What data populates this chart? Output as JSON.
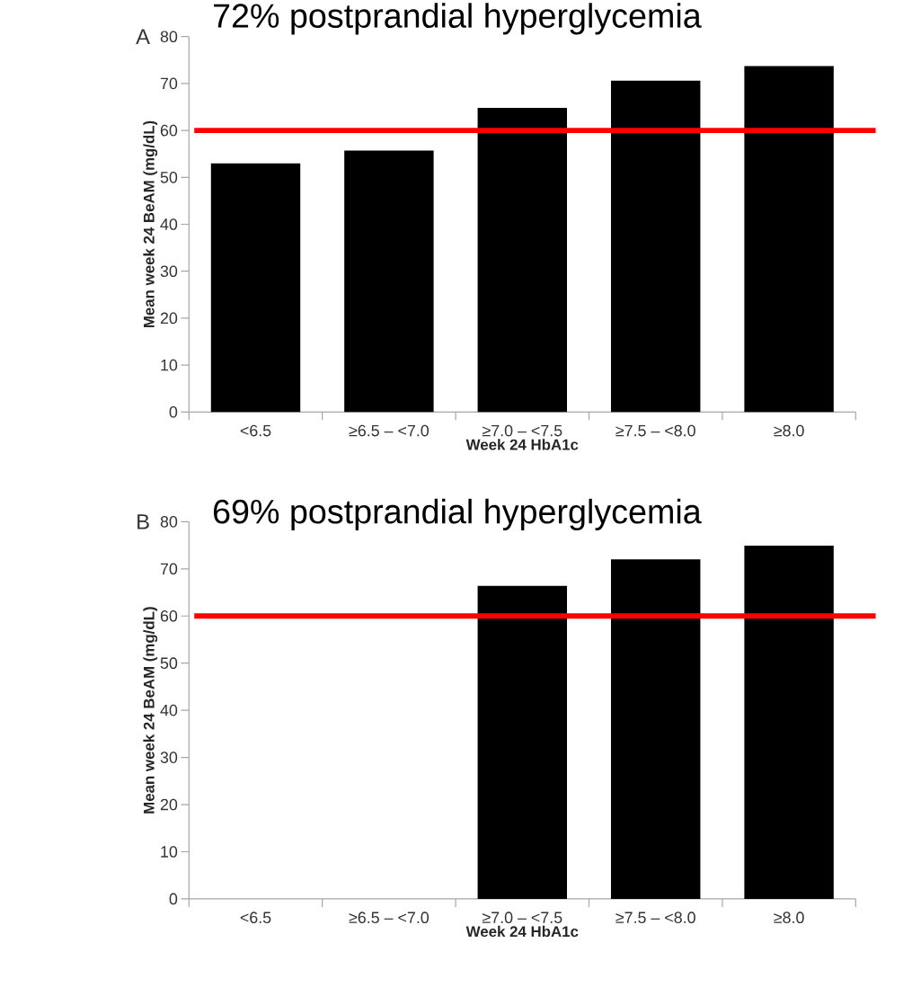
{
  "chart_data": [
    {
      "type": "bar",
      "title": "72% postprandial hyperglycemia",
      "annotations": [
        "A"
      ],
      "xlabel": "Week 24 HbA1c",
      "ylabel": "Mean week 24 BeAM (mg/dL)",
      "categories": [
        "<6.5",
        "≥6.5 – <7.0",
        "≥7.0 – <7.5",
        "≥7.5 – <8.0",
        "≥8.0"
      ],
      "values": [
        53,
        55.7,
        64.8,
        70.6,
        73.7
      ],
      "color": "#000000",
      "ylim": [
        0,
        80
      ],
      "yticks": [
        0,
        10,
        20,
        30,
        40,
        50,
        60,
        70,
        80
      ],
      "ref_lines": [
        {
          "axis": "y",
          "value": 60,
          "color": "#ff0000"
        }
      ]
    },
    {
      "type": "bar",
      "title": "69% postprandial hyperglycemia",
      "annotations": [
        "B"
      ],
      "xlabel": "Week 24 HbA1c",
      "ylabel": "Mean week 24 BeAM (mg/dL)",
      "categories": [
        "<6.5",
        "≥6.5 – <7.0",
        "≥7.0 – <7.5",
        "≥7.5 – <8.0",
        "≥8.0"
      ],
      "values": [
        null,
        null,
        66.4,
        72.0,
        74.9
      ],
      "color": "#000000",
      "ylim": [
        0,
        80
      ],
      "yticks": [
        0,
        10,
        20,
        30,
        40,
        50,
        60,
        70,
        80
      ],
      "ref_lines": [
        {
          "axis": "y",
          "value": 60,
          "color": "#ff0000"
        }
      ]
    }
  ]
}
